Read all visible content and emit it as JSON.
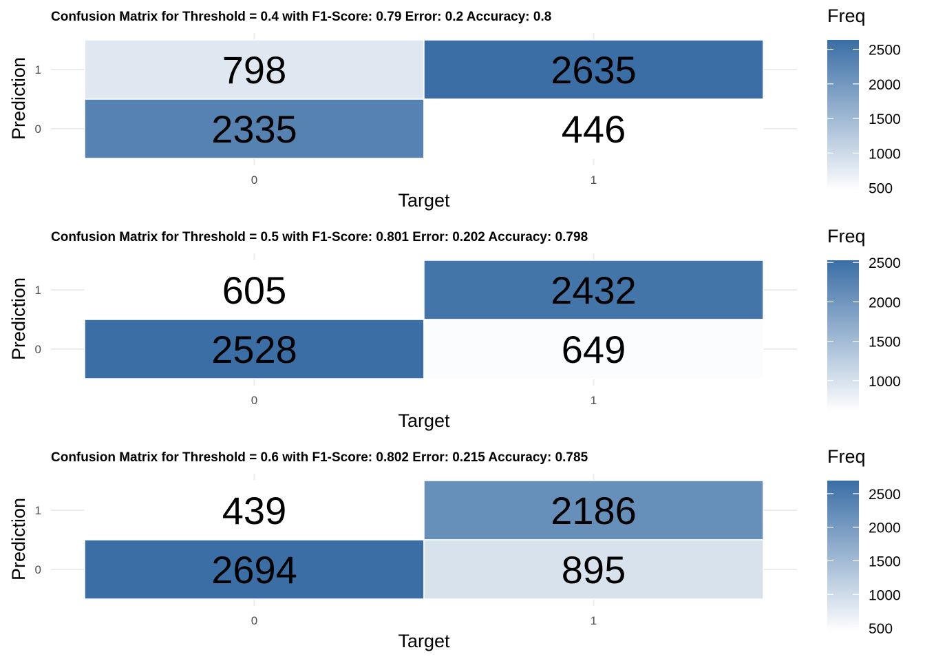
{
  "colors": {
    "low": "#ffffff",
    "high": "#3a6ea5",
    "grid": "#ebebeb",
    "tick_text": "#4d4d4d"
  },
  "chart_data": [
    {
      "type": "heatmap",
      "title": "Confusion Matrix for Threshold =  0.4 with F1-Score: 0.79 Error: 0.2 Accuracy: 0.8",
      "xlabel": "Target",
      "ylabel": "Prediction",
      "x_categories": [
        "0",
        "1"
      ],
      "y_categories": [
        "0",
        "1"
      ],
      "cells": [
        {
          "target": "0",
          "prediction": "1",
          "value": 798
        },
        {
          "target": "1",
          "prediction": "1",
          "value": 2635
        },
        {
          "target": "0",
          "prediction": "0",
          "value": 2335
        },
        {
          "target": "1",
          "prediction": "0",
          "value": 446
        }
      ],
      "legend": {
        "title": "Freq",
        "range": [
          446,
          2635
        ],
        "ticks": [
          500,
          1000,
          1500,
          2000,
          2500
        ]
      }
    },
    {
      "type": "heatmap",
      "title": "Confusion Matrix for Threshold =  0.5 with F1-Score: 0.801 Error: 0.202 Accuracy: 0.798",
      "xlabel": "Target",
      "ylabel": "Prediction",
      "x_categories": [
        "0",
        "1"
      ],
      "y_categories": [
        "0",
        "1"
      ],
      "cells": [
        {
          "target": "0",
          "prediction": "1",
          "value": 605
        },
        {
          "target": "1",
          "prediction": "1",
          "value": 2432
        },
        {
          "target": "0",
          "prediction": "0",
          "value": 2528
        },
        {
          "target": "1",
          "prediction": "0",
          "value": 649
        }
      ],
      "legend": {
        "title": "Freq",
        "range": [
          605,
          2528
        ],
        "ticks": [
          1000,
          1500,
          2000,
          2500
        ]
      }
    },
    {
      "type": "heatmap",
      "title": "Confusion Matrix for Threshold =  0.6 with F1-Score: 0.802 Error: 0.215 Accuracy: 0.785",
      "xlabel": "Target",
      "ylabel": "Prediction",
      "x_categories": [
        "0",
        "1"
      ],
      "y_categories": [
        "0",
        "1"
      ],
      "cells": [
        {
          "target": "0",
          "prediction": "1",
          "value": 439
        },
        {
          "target": "1",
          "prediction": "1",
          "value": 2186
        },
        {
          "target": "0",
          "prediction": "0",
          "value": 2694
        },
        {
          "target": "1",
          "prediction": "0",
          "value": 895
        }
      ],
      "legend": {
        "title": "Freq",
        "range": [
          439,
          2694
        ],
        "ticks": [
          500,
          1000,
          1500,
          2000,
          2500
        ]
      }
    }
  ]
}
